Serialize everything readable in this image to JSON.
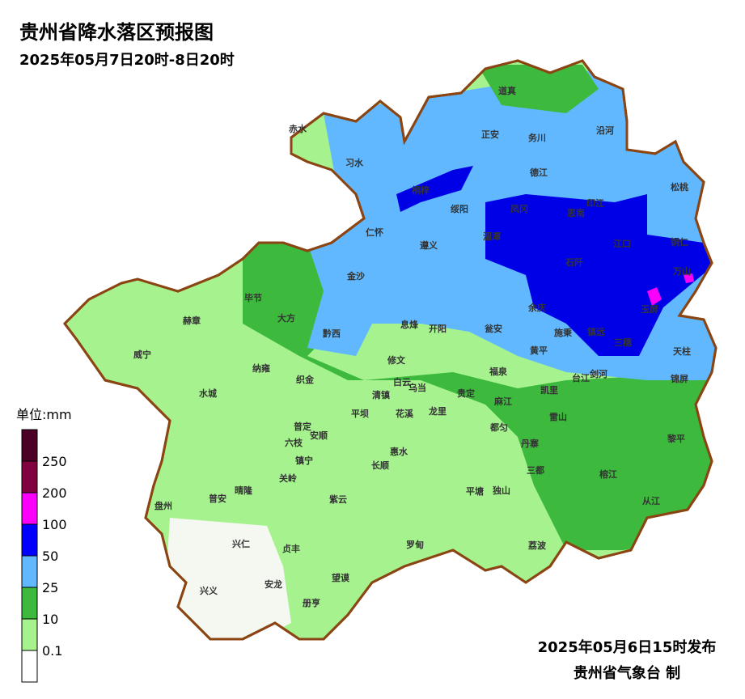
{
  "header": {
    "title": "贵州省降水落区预报图",
    "subtitle": "2025年05月7日20时-8日20时"
  },
  "legend": {
    "unit": "单位:mm",
    "ticks": [
      0.1,
      10,
      25,
      50,
      100,
      200,
      250
    ],
    "colors": [
      "#ffffff",
      "#a6f28f",
      "#3dba3d",
      "#61b8ff",
      "#0000ff",
      "#fa00fa",
      "#800040",
      "#4d0026"
    ]
  },
  "counties": [
    "赤水",
    "习水",
    "道真",
    "正安",
    "务川",
    "沿河",
    "桐梓",
    "绥阳",
    "德江",
    "印江",
    "松桃",
    "仁怀",
    "湄潭",
    "凤冈",
    "思南",
    "江口",
    "铜仁",
    "遵义",
    "金沙",
    "石阡",
    "万山",
    "毕节",
    "大方",
    "余庆",
    "玉屏",
    "赫章",
    "黔西",
    "息烽",
    "开阳",
    "瓮安",
    "施秉",
    "镇远",
    "黄平",
    "三穗",
    "天柱",
    "威宁",
    "纳雍",
    "修文",
    "福泉",
    "台江",
    "剑河",
    "锦屏",
    "织金",
    "水城",
    "白云",
    "清镇",
    "乌当",
    "贵定",
    "凯里",
    "麻江",
    "雷山",
    "平坝",
    "花溪",
    "龙里",
    "都匀",
    "丹寨",
    "黎平",
    "普定",
    "安顺",
    "六枝",
    "惠水",
    "长顺",
    "镇宁",
    "关岭",
    "三都",
    "榕江",
    "从江",
    "盘州",
    "普安",
    "晴隆",
    "紫云",
    "平塘",
    "独山",
    "兴仁",
    "贞丰",
    "罗甸",
    "荔波",
    "望谟",
    "安龙",
    "兴义",
    "册亨"
  ],
  "footer": {
    "issued": "2025年05月6日15时发布",
    "agency": "贵州省气象台 制"
  }
}
